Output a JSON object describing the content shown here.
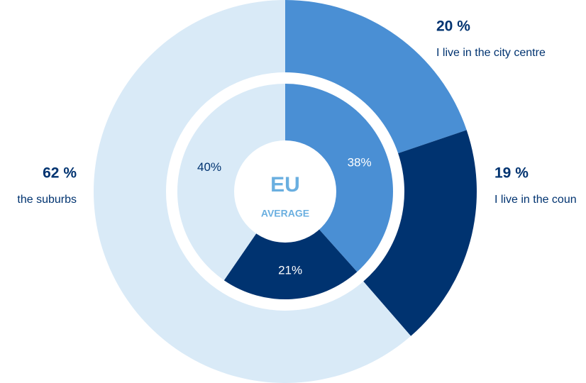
{
  "chart_data": {
    "type": "donut",
    "center_title": "EU",
    "center_subtitle": "AVERAGE",
    "outer": {
      "values": [
        20,
        19,
        62
      ],
      "value_labels": [
        "20 %",
        "19 %",
        "62 %"
      ],
      "categories": [
        "I live in the city centre",
        "I live in the coun",
        "the suburbs"
      ],
      "colors": [
        "#4a8fd4",
        "#003370",
        "#d9eaf7"
      ]
    },
    "inner": {
      "values": [
        38,
        21,
        40
      ],
      "value_labels": [
        "38%",
        "21%",
        "40%"
      ],
      "colors": [
        "#4a8fd4",
        "#003370",
        "#d9eaf7"
      ]
    }
  }
}
